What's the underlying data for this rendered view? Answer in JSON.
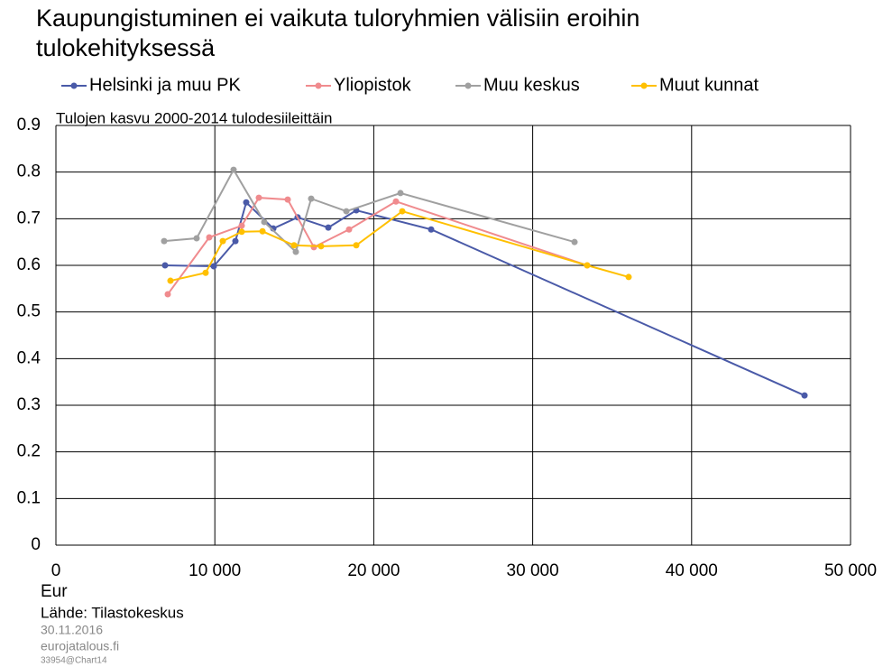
{
  "chart_data": {
    "type": "line",
    "title": "Kaupungistuminen ei vaikuta tuloryhmien välisiin eroihin tulokehityksessä",
    "subtitle": "Tulojen kasvu 2000-2014 tulodesiileittäin",
    "x_label": "Eur",
    "source": "Lähde: Tilastokeskus",
    "date": "30.11.2016",
    "site": "eurojatalous.fi",
    "chart_id": "33954@Chart14",
    "xlim": [
      0,
      50000
    ],
    "xticks": [
      0,
      {
        "value": 10000,
        "label": "10 000"
      },
      {
        "value": 20000,
        "label": "20 000"
      },
      {
        "value": 30000,
        "label": "30 000"
      },
      {
        "value": 40000,
        "label": "40 000"
      },
      {
        "value": 50000,
        "label": "50 000"
      }
    ],
    "ylim": [
      0,
      0.9
    ],
    "yticks": [
      0,
      0.1,
      0.2,
      0.3,
      0.4,
      0.5,
      0.6,
      0.7,
      0.8,
      0.9
    ],
    "grid": true,
    "legend": "top",
    "series": [
      {
        "name": "Helsinki ja muu PK",
        "color": "#4a5aa8",
        "x": [
          6867,
          9932,
          11294,
          11975,
          13678,
          15210,
          17140,
          18900,
          23610,
          47106
        ],
        "values": [
          0.6,
          0.598,
          0.652,
          0.735,
          0.679,
          0.703,
          0.681,
          0.718,
          0.677,
          0.321
        ]
      },
      {
        "name": "Yliopistok",
        "color": "#f08b8e",
        "x": [
          7037,
          9648,
          11691,
          12770,
          14586,
          16232,
          18445,
          21396,
          33428
        ],
        "values": [
          0.538,
          0.66,
          0.685,
          0.745,
          0.741,
          0.639,
          0.677,
          0.737,
          0.6
        ]
      },
      {
        "name": "Muu keskus",
        "color": "#a0a0a0",
        "x": [
          6810,
          8854,
          11180,
          13110,
          15096,
          16061,
          18275,
          21680,
          32634
        ],
        "values": [
          0.652,
          0.658,
          0.805,
          0.693,
          0.629,
          0.743,
          0.716,
          0.755,
          0.65
        ]
      },
      {
        "name": "Muut kunnat",
        "color": "#ffc000",
        "x": [
          7208,
          9421,
          10500,
          11691,
          13000,
          14983,
          16686,
          18900,
          21794,
          33428,
          36039
        ],
        "values": [
          0.567,
          0.584,
          0.652,
          0.672,
          0.673,
          0.643,
          0.641,
          0.643,
          0.716,
          0.6,
          0.575
        ]
      }
    ]
  }
}
